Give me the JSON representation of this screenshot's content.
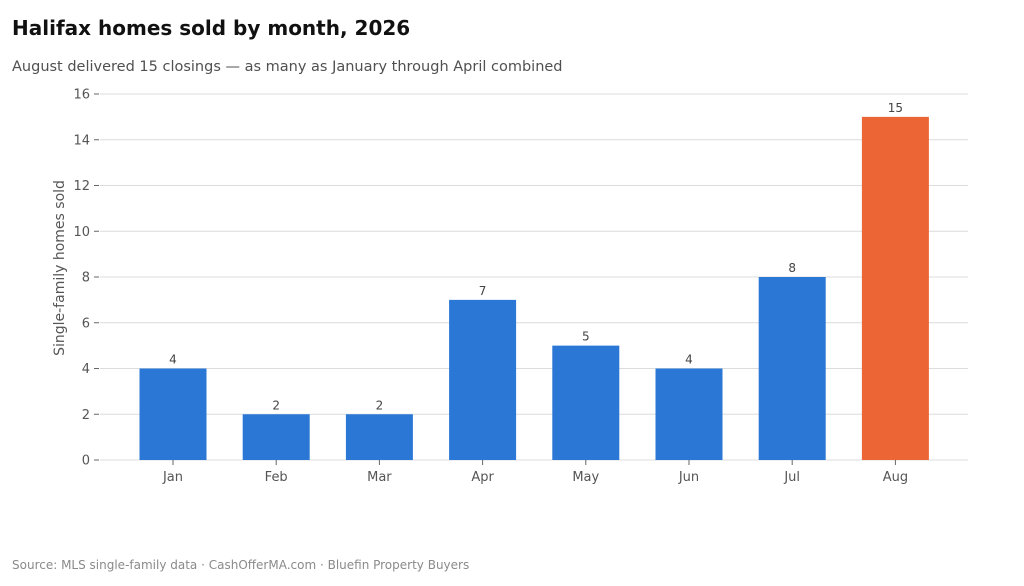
{
  "header": {
    "title": "Halifax homes sold by month, 2026",
    "subtitle": "August delivered 15 closings — as many as January through April combined"
  },
  "footer": {
    "source": "Source: MLS single-family data  ·  CashOfferMA.com  ·  Bluefin Property Buyers"
  },
  "chart_data": {
    "type": "bar",
    "title": "Halifax homes sold by month, 2026",
    "subtitle": "August delivered 15 closings — as many as January through April combined",
    "xlabel": "",
    "ylabel": "Single-family homes sold",
    "categories": [
      "Jan",
      "Feb",
      "Mar",
      "Apr",
      "May",
      "Jun",
      "Jul",
      "Aug"
    ],
    "values": [
      4,
      2,
      2,
      7,
      5,
      4,
      8,
      15
    ],
    "data_labels": [
      "4",
      "2",
      "2",
      "7",
      "5",
      "4",
      "8",
      "15"
    ],
    "ylim": [
      0,
      16
    ],
    "yticks": [
      0,
      2,
      4,
      6,
      8,
      10,
      12,
      14,
      16
    ],
    "grid": "horizontal",
    "legend": "none",
    "colors": {
      "bar": "#2a77d6",
      "highlight": "#eb6634",
      "highlight_category": "Aug",
      "grid": "#dcdcdc"
    }
  }
}
